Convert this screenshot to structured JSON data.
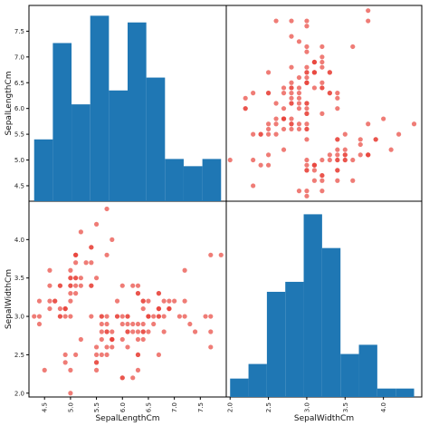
{
  "chart_data": {
    "type": "scatter-matrix",
    "variables": [
      "SepalLengthCm",
      "SepalWidthCm"
    ],
    "bar_color": "#1f77b4",
    "point_color": "#e8453c",
    "axes": {
      "SepalLengthCm": {
        "range": [
          4.2,
          8.0
        ],
        "ticks": [
          "4.5",
          "5.0",
          "5.5",
          "6.0",
          "6.5",
          "7.0",
          "7.5"
        ],
        "tick_values": [
          4.5,
          5.0,
          5.5,
          6.0,
          6.5,
          7.0,
          7.5
        ]
      },
      "SepalWidthCm": {
        "range": [
          1.95,
          4.5
        ],
        "ticks": [
          "2.0",
          "2.5",
          "3.0",
          "3.5",
          "4.0"
        ],
        "tick_values": [
          2.0,
          2.5,
          3.0,
          3.5,
          4.0
        ]
      }
    },
    "hist_sepal_length": {
      "bins": [
        4.3,
        4.66,
        5.02,
        5.38,
        5.74,
        6.1,
        6.46,
        6.82,
        7.18,
        7.54,
        7.9
      ],
      "heights": [
        5.4,
        7.27,
        6.08,
        7.8,
        6.35,
        7.67,
        6.6,
        5.02,
        4.88,
        5.02
      ]
    },
    "hist_sepal_width": {
      "bins": [
        2.0,
        2.24,
        2.48,
        2.72,
        2.96,
        3.2,
        3.44,
        3.68,
        3.92,
        4.16,
        4.4
      ],
      "heights": [
        2.19,
        2.38,
        3.32,
        3.45,
        4.33,
        3.89,
        2.51,
        2.63,
        2.06,
        2.06
      ]
    },
    "points": [
      [
        5.1,
        3.5
      ],
      [
        4.9,
        3.0
      ],
      [
        4.7,
        3.2
      ],
      [
        4.6,
        3.1
      ],
      [
        5.0,
        3.6
      ],
      [
        5.4,
        3.9
      ],
      [
        4.6,
        3.4
      ],
      [
        5.0,
        3.4
      ],
      [
        4.4,
        2.9
      ],
      [
        4.9,
        3.1
      ],
      [
        5.4,
        3.7
      ],
      [
        4.8,
        3.4
      ],
      [
        4.8,
        3.0
      ],
      [
        4.3,
        3.0
      ],
      [
        5.8,
        4.0
      ],
      [
        5.7,
        4.4
      ],
      [
        5.4,
        3.9
      ],
      [
        5.1,
        3.5
      ],
      [
        5.7,
        3.8
      ],
      [
        5.1,
        3.8
      ],
      [
        5.4,
        3.4
      ],
      [
        5.1,
        3.7
      ],
      [
        4.6,
        3.6
      ],
      [
        5.1,
        3.3
      ],
      [
        4.8,
        3.4
      ],
      [
        5.0,
        3.0
      ],
      [
        5.0,
        3.4
      ],
      [
        5.2,
        3.5
      ],
      [
        5.2,
        3.4
      ],
      [
        4.7,
        3.2
      ],
      [
        4.8,
        3.1
      ],
      [
        5.4,
        3.4
      ],
      [
        5.2,
        4.1
      ],
      [
        5.5,
        4.2
      ],
      [
        4.9,
        3.1
      ],
      [
        5.0,
        3.2
      ],
      [
        5.5,
        3.5
      ],
      [
        4.9,
        3.1
      ],
      [
        4.4,
        3.0
      ],
      [
        5.1,
        3.4
      ],
      [
        5.0,
        3.5
      ],
      [
        4.5,
        2.3
      ],
      [
        4.4,
        3.2
      ],
      [
        5.0,
        3.5
      ],
      [
        5.1,
        3.8
      ],
      [
        4.8,
        3.0
      ],
      [
        5.1,
        3.8
      ],
      [
        4.6,
        3.2
      ],
      [
        5.3,
        3.7
      ],
      [
        5.0,
        3.3
      ],
      [
        7.0,
        3.2
      ],
      [
        6.4,
        3.2
      ],
      [
        6.9,
        3.1
      ],
      [
        5.5,
        2.3
      ],
      [
        6.5,
        2.8
      ],
      [
        5.7,
        2.8
      ],
      [
        6.3,
        3.3
      ],
      [
        4.9,
        2.4
      ],
      [
        6.6,
        2.9
      ],
      [
        5.2,
        2.7
      ],
      [
        5.0,
        2.0
      ],
      [
        5.9,
        3.0
      ],
      [
        6.0,
        2.2
      ],
      [
        6.1,
        2.9
      ],
      [
        5.6,
        2.9
      ],
      [
        6.7,
        3.1
      ],
      [
        5.6,
        3.0
      ],
      [
        5.8,
        2.7
      ],
      [
        6.2,
        2.2
      ],
      [
        5.6,
        2.5
      ],
      [
        5.9,
        3.2
      ],
      [
        6.1,
        2.8
      ],
      [
        6.3,
        2.5
      ],
      [
        6.1,
        2.8
      ],
      [
        6.4,
        2.9
      ],
      [
        6.6,
        3.0
      ],
      [
        6.8,
        2.8
      ],
      [
        6.7,
        3.0
      ],
      [
        6.0,
        2.9
      ],
      [
        5.7,
        2.6
      ],
      [
        5.5,
        2.4
      ],
      [
        5.5,
        2.4
      ],
      [
        5.8,
        2.7
      ],
      [
        6.0,
        2.7
      ],
      [
        5.4,
        3.0
      ],
      [
        6.0,
        3.4
      ],
      [
        6.7,
        3.1
      ],
      [
        6.3,
        2.3
      ],
      [
        5.6,
        3.0
      ],
      [
        5.5,
        2.5
      ],
      [
        5.5,
        2.6
      ],
      [
        6.1,
        3.0
      ],
      [
        5.8,
        2.6
      ],
      [
        5.0,
        2.3
      ],
      [
        5.6,
        2.7
      ],
      [
        5.7,
        3.0
      ],
      [
        5.7,
        2.9
      ],
      [
        6.2,
        2.9
      ],
      [
        5.1,
        2.5
      ],
      [
        5.7,
        2.8
      ],
      [
        6.3,
        3.3
      ],
      [
        5.8,
        2.7
      ],
      [
        7.1,
        3.0
      ],
      [
        6.3,
        2.9
      ],
      [
        6.5,
        3.0
      ],
      [
        7.6,
        3.0
      ],
      [
        4.9,
        2.5
      ],
      [
        7.3,
        2.9
      ],
      [
        6.7,
        2.5
      ],
      [
        7.2,
        3.6
      ],
      [
        6.5,
        3.2
      ],
      [
        6.4,
        2.7
      ],
      [
        6.8,
        3.0
      ],
      [
        5.7,
        2.5
      ],
      [
        5.8,
        2.8
      ],
      [
        6.4,
        3.2
      ],
      [
        6.5,
        3.0
      ],
      [
        7.7,
        3.8
      ],
      [
        7.7,
        2.6
      ],
      [
        6.0,
        2.2
      ],
      [
        6.9,
        3.2
      ],
      [
        5.6,
        2.8
      ],
      [
        7.7,
        2.8
      ],
      [
        6.3,
        2.7
      ],
      [
        6.7,
        3.3
      ],
      [
        7.2,
        3.2
      ],
      [
        6.2,
        2.8
      ],
      [
        6.1,
        3.0
      ],
      [
        6.4,
        2.8
      ],
      [
        7.2,
        3.0
      ],
      [
        7.4,
        2.8
      ],
      [
        7.9,
        3.8
      ],
      [
        6.4,
        2.8
      ],
      [
        6.3,
        2.8
      ],
      [
        6.1,
        2.6
      ],
      [
        7.7,
        3.0
      ],
      [
        6.3,
        3.4
      ],
      [
        6.4,
        3.1
      ],
      [
        6.0,
        3.0
      ],
      [
        6.9,
        3.1
      ],
      [
        6.7,
        3.1
      ],
      [
        6.9,
        3.1
      ],
      [
        5.8,
        2.7
      ],
      [
        6.8,
        3.2
      ],
      [
        6.7,
        3.3
      ],
      [
        6.7,
        3.0
      ],
      [
        6.3,
        2.5
      ],
      [
        6.5,
        3.0
      ],
      [
        6.2,
        3.4
      ],
      [
        5.9,
        3.0
      ]
    ]
  }
}
